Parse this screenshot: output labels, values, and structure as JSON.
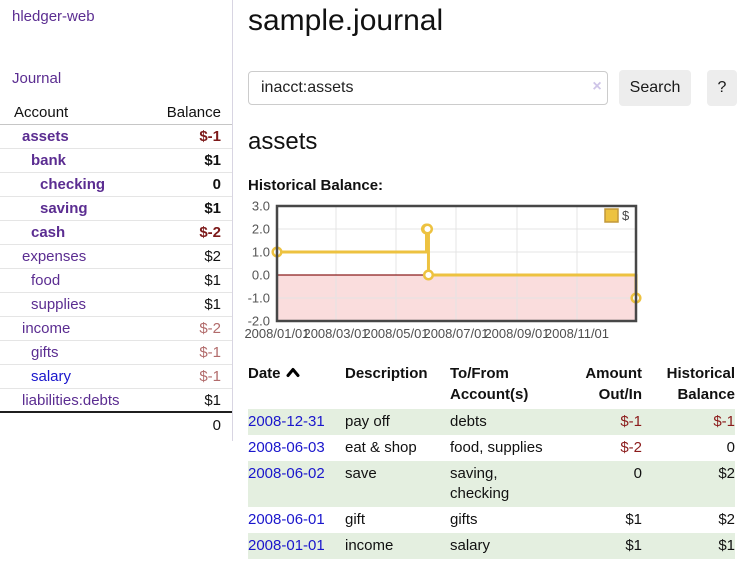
{
  "colors": {
    "link_purple": "#5b2d91",
    "link_blue": "#1a16cc",
    "negative_strong": "#7d1a1a",
    "negative_soft": "#b26b6b",
    "negative_table": "#8b1b1b",
    "row_stripe_green": "#e4efe0",
    "button_bg": "#ededed",
    "chart_line_gold": "#edc240"
  },
  "sidebar": {
    "brand": "hledger-web",
    "nav": {
      "journal": "Journal"
    },
    "table": {
      "headers": [
        "Account",
        "Balance"
      ],
      "rows": [
        {
          "account": "assets",
          "depth": 1,
          "bold": true,
          "balance": "$-1",
          "neg": "strong"
        },
        {
          "account": "bank",
          "depth": 2,
          "bold": true,
          "balance": "$1",
          "neg": "none"
        },
        {
          "account": "checking",
          "depth": 3,
          "bold": true,
          "balance": "0",
          "neg": "none"
        },
        {
          "account": "saving",
          "depth": 3,
          "bold": true,
          "balance": "$1",
          "neg": "none"
        },
        {
          "account": "cash",
          "depth": 2,
          "bold": true,
          "balance": "$-2",
          "neg": "strong"
        },
        {
          "account": "expenses",
          "depth": 1,
          "bold": false,
          "balance": "$2",
          "neg": "none"
        },
        {
          "account": "food",
          "depth": 2,
          "bold": false,
          "balance": "$1",
          "neg": "none"
        },
        {
          "account": "supplies",
          "depth": 2,
          "bold": false,
          "balance": "$1",
          "neg": "none"
        },
        {
          "account": "income",
          "depth": 1,
          "bold": false,
          "balance": "$-2",
          "neg": "soft"
        },
        {
          "account": "gifts",
          "depth": 2,
          "bold": false,
          "balance": "$-1",
          "neg": "soft"
        },
        {
          "account": "salary",
          "depth": 2,
          "bold": false,
          "balance": "$-1",
          "neg": "soft",
          "link_color": "blue"
        },
        {
          "account": "liabilities:debts",
          "depth": 1,
          "bold": false,
          "balance": "$1",
          "neg": "none"
        }
      ],
      "total": "0"
    }
  },
  "main": {
    "title": "sample.journal",
    "search": {
      "value": "inacct:assets",
      "clear_icon": "×",
      "button_label": "Search",
      "help_label": "?"
    },
    "heading": "assets",
    "chart_label": "Historical Balance:"
  },
  "chart_data": {
    "type": "line",
    "style": "step",
    "title": "Historical Balance",
    "x": [
      "2008-01-01",
      "2008-06-01",
      "2008-06-02",
      "2008-06-03",
      "2008-12-31"
    ],
    "series": [
      {
        "name": "$",
        "values": [
          1,
          2,
          2,
          0,
          -1
        ],
        "color": "#edc240"
      }
    ],
    "xlim": [
      "2008-01-01",
      "2008-12-31"
    ],
    "ylim": [
      -2,
      3
    ],
    "y_ticks": [
      "3.0",
      "2.0",
      "1.0",
      "0.0",
      "-1.0",
      "-2.0"
    ],
    "x_ticks": [
      "2008/01/01",
      "2008/03/01",
      "2008/05/01",
      "2008/07/01",
      "2008/09/01",
      "2008/11/01"
    ],
    "legend": {
      "position": "top-right",
      "label": "$"
    },
    "grid": true,
    "grid_color": "#e4e4e4",
    "border_color": "#474747",
    "negative_region_color": "#fadddd",
    "zero_line_color": "#8b1d1d",
    "marker": {
      "shape": "circle",
      "fill": "#ffffff"
    }
  },
  "register": {
    "headers": [
      {
        "lines": [
          "Date"
        ],
        "align": "left",
        "sort_icon": true,
        "sort_dir": "asc"
      },
      {
        "lines": [
          "Description"
        ],
        "align": "left",
        "sort_icon": false
      },
      {
        "lines": [
          "To/From",
          "Account(s)"
        ],
        "align": "left",
        "sort_icon": false
      },
      {
        "lines": [
          "Amount",
          "Out/In"
        ],
        "align": "right",
        "sort_icon": false
      },
      {
        "lines": [
          "Historical",
          "Balance"
        ],
        "align": "right",
        "sort_icon": false
      }
    ],
    "rows": [
      {
        "date": "2008-12-31",
        "description": "pay off",
        "accounts": "debts",
        "amount": "$-1",
        "balance": "$-1",
        "amount_neg": true,
        "balance_neg": true
      },
      {
        "date": "2008-06-03",
        "description": "eat & shop",
        "accounts": "food, supplies",
        "amount": "$-2",
        "balance": "0",
        "amount_neg": true,
        "balance_neg": false
      },
      {
        "date": "2008-06-02",
        "description": "save",
        "accounts": "saving,\nchecking",
        "amount": "0",
        "balance": "$2",
        "amount_neg": false,
        "balance_neg": false
      },
      {
        "date": "2008-06-01",
        "description": "gift",
        "accounts": "gifts",
        "amount": "$1",
        "balance": "$2",
        "amount_neg": false,
        "balance_neg": false
      },
      {
        "date": "2008-01-01",
        "description": "income",
        "accounts": "salary",
        "amount": "$1",
        "balance": "$1",
        "amount_neg": false,
        "balance_neg": false
      }
    ]
  }
}
